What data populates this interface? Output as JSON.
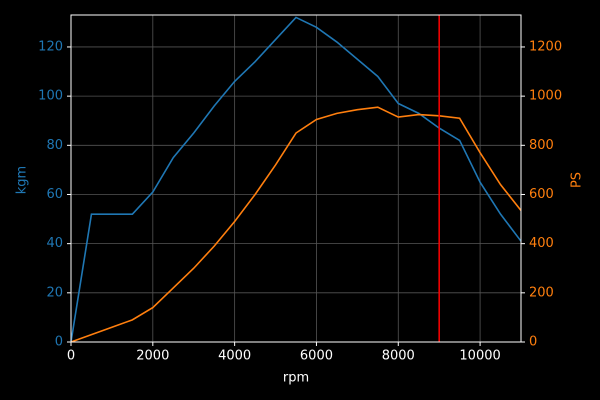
{
  "chart_data": {
    "type": "line",
    "x": [
      0,
      500,
      1000,
      1500,
      2000,
      2500,
      3000,
      3500,
      4000,
      4500,
      5000,
      5500,
      6000,
      6500,
      7000,
      7500,
      8000,
      8500,
      9000,
      9500,
      10000,
      10500,
      11000
    ],
    "xlabel": "rpm",
    "ylabel": "kgm",
    "y2label": "PS",
    "series": [
      {
        "name": "kgm",
        "color": "#1f77b4",
        "axis": "y",
        "values": [
          0,
          52,
          52,
          52,
          61,
          75,
          85,
          96,
          106,
          114,
          123,
          132,
          128,
          122,
          115,
          108,
          97,
          93,
          87,
          82,
          65,
          52,
          41
        ]
      },
      {
        "name": "PS",
        "color": "#ff7f0e",
        "axis": "y2",
        "values": [
          0,
          30,
          60,
          90,
          140,
          220,
          300,
          390,
          490,
          600,
          720,
          850,
          905,
          930,
          945,
          955,
          915,
          925,
          920,
          910,
          770,
          640,
          535
        ]
      }
    ],
    "xlim": [
      0,
      11000
    ],
    "xticks": [
      0,
      2000,
      4000,
      6000,
      8000,
      10000
    ],
    "ylim": [
      0,
      133
    ],
    "yticks": [
      0,
      20,
      40,
      60,
      80,
      100,
      120
    ],
    "y2lim": [
      0,
      1330
    ],
    "y2ticks": [
      0,
      200,
      400,
      600,
      800,
      1000,
      1200
    ],
    "vline": {
      "x": 9000,
      "color": "#ff0000"
    },
    "grid": true
  }
}
